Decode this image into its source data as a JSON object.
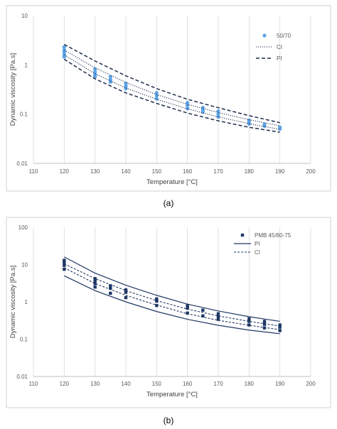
{
  "chart_data": [
    {
      "type": "scatter",
      "panel_label": "(a)",
      "xlabel": "Temperature [°C]",
      "ylabel": "Dynamic viscosity [Pa.s]",
      "xlim": [
        110,
        200
      ],
      "ylim": [
        0.01,
        10
      ],
      "y_scale": "log",
      "grid": "vertical",
      "legend_position": "right",
      "x_ticks": [
        110,
        120,
        130,
        140,
        150,
        160,
        170,
        180,
        190,
        200
      ],
      "y_ticks": [
        {
          "value": 0.01,
          "label": "0.01"
        },
        {
          "value": 0.1,
          "label": "0.1"
        },
        {
          "value": 1,
          "label": "1"
        },
        {
          "value": 10,
          "label": "10"
        }
      ],
      "series": [
        {
          "name": "50/70",
          "kind": "points",
          "marker": "circle",
          "color": "#5ba3e6",
          "points": [
            [
              120,
              2.3
            ],
            [
              120,
              2.0
            ],
            [
              120,
              1.8
            ],
            [
              120,
              1.6
            ],
            [
              120,
              1.45
            ],
            [
              130,
              0.82
            ],
            [
              130,
              0.72
            ],
            [
              130,
              0.64
            ],
            [
              130,
              0.58
            ],
            [
              135,
              0.57
            ],
            [
              135,
              0.5
            ],
            [
              135,
              0.45
            ],
            [
              140,
              0.42
            ],
            [
              140,
              0.37
            ],
            [
              140,
              0.33
            ],
            [
              150,
              0.27
            ],
            [
              150,
              0.235
            ],
            [
              150,
              0.205
            ],
            [
              160,
              0.17
            ],
            [
              160,
              0.15
            ],
            [
              160,
              0.13
            ],
            [
              165,
              0.135
            ],
            [
              165,
              0.12
            ],
            [
              165,
              0.11
            ],
            [
              170,
              0.115
            ],
            [
              170,
              0.1
            ],
            [
              170,
              0.088
            ],
            [
              180,
              0.075
            ],
            [
              180,
              0.068
            ],
            [
              180,
              0.063
            ],
            [
              185,
              0.062
            ],
            [
              185,
              0.057
            ],
            [
              190,
              0.054
            ],
            [
              190,
              0.05
            ]
          ]
        },
        {
          "name": "CI",
          "kind": "line",
          "dash": "1.2,1.8",
          "stroke_width": 1.1,
          "color": "#1f2d4d",
          "curves": [
            [
              [
                120,
                2.0
              ],
              [
                130,
                0.87
              ],
              [
                140,
                0.44
              ],
              [
                150,
                0.25
              ],
              [
                160,
                0.158
              ],
              [
                170,
                0.108
              ],
              [
                180,
                0.077
              ],
              [
                190,
                0.058
              ]
            ],
            [
              [
                120,
                1.6
              ],
              [
                130,
                0.66
              ],
              [
                140,
                0.34
              ],
              [
                150,
                0.2
              ],
              [
                160,
                0.128
              ],
              [
                170,
                0.088
              ],
              [
                180,
                0.064
              ],
              [
                190,
                0.049
              ]
            ]
          ]
        },
        {
          "name": "PI",
          "kind": "line",
          "dash": "5,3",
          "stroke_width": 1.5,
          "color": "#1f2d4d",
          "curves": [
            [
              [
                120,
                2.6
              ],
              [
                130,
                1.2
              ],
              [
                140,
                0.6
              ],
              [
                150,
                0.33
              ],
              [
                160,
                0.2
              ],
              [
                170,
                0.135
              ],
              [
                180,
                0.093
              ],
              [
                190,
                0.067
              ]
            ],
            [
              [
                120,
                1.3
              ],
              [
                130,
                0.52
              ],
              [
                140,
                0.27
              ],
              [
                150,
                0.165
              ],
              [
                160,
                0.105
              ],
              [
                170,
                0.073
              ],
              [
                180,
                0.054
              ],
              [
                190,
                0.043
              ]
            ]
          ]
        }
      ]
    },
    {
      "type": "scatter",
      "panel_label": "(b)",
      "xlabel": "Temperature [°C]",
      "ylabel": "Dynamic viscosity [Pa.s]",
      "xlim": [
        110,
        200
      ],
      "ylim": [
        0.01,
        100
      ],
      "y_scale": "log",
      "grid": "vertical",
      "legend_position": "top-right",
      "x_ticks": [
        110,
        120,
        130,
        140,
        150,
        160,
        170,
        180,
        190,
        200
      ],
      "y_ticks": [
        {
          "value": 0.01,
          "label": "0.01"
        },
        {
          "value": 0.1,
          "label": "0.1"
        },
        {
          "value": 1,
          "label": "1"
        },
        {
          "value": 10,
          "label": "10"
        },
        {
          "value": 100,
          "label": "100"
        }
      ],
      "series": [
        {
          "name": "PMB 45/80-75",
          "kind": "points",
          "marker": "square",
          "color": "#1f3864",
          "points": [
            [
              120,
              13
            ],
            [
              120,
              11.5
            ],
            [
              120,
              9.5
            ],
            [
              120,
              7.5
            ],
            [
              130,
              4.2
            ],
            [
              130,
              3.6
            ],
            [
              130,
              3.1
            ],
            [
              130,
              2.5
            ],
            [
              135,
              2.7
            ],
            [
              135,
              2.3
            ],
            [
              135,
              1.7
            ],
            [
              140,
              2.1
            ],
            [
              140,
              1.8
            ],
            [
              140,
              1.3
            ],
            [
              150,
              1.2
            ],
            [
              150,
              1.05
            ],
            [
              150,
              0.8
            ],
            [
              160,
              0.8
            ],
            [
              160,
              0.68
            ],
            [
              160,
              0.5
            ],
            [
              165,
              0.6
            ],
            [
              165,
              0.42
            ],
            [
              170,
              0.48
            ],
            [
              170,
              0.4
            ],
            [
              170,
              0.34
            ],
            [
              180,
              0.35
            ],
            [
              180,
              0.3
            ],
            [
              180,
              0.24
            ],
            [
              185,
              0.3
            ],
            [
              185,
              0.25
            ],
            [
              185,
              0.2
            ],
            [
              190,
              0.24
            ],
            [
              190,
              0.21
            ],
            [
              190,
              0.17
            ]
          ]
        },
        {
          "name": "PI",
          "kind": "line",
          "dash": "",
          "stroke_width": 1.2,
          "color": "#1f3864",
          "curves": [
            [
              [
                120,
                16
              ],
              [
                130,
                5.9
              ],
              [
                140,
                2.8
              ],
              [
                150,
                1.5
              ],
              [
                160,
                0.87
              ],
              [
                170,
                0.57
              ],
              [
                180,
                0.4
              ],
              [
                190,
                0.3
              ]
            ],
            [
              [
                120,
                5
              ],
              [
                130,
                2.0
              ],
              [
                140,
                1.0
              ],
              [
                150,
                0.55
              ],
              [
                160,
                0.34
              ],
              [
                170,
                0.235
              ],
              [
                180,
                0.175
              ],
              [
                190,
                0.14
              ]
            ]
          ]
        },
        {
          "name": "CI",
          "kind": "line",
          "dash": "3,2",
          "stroke_width": 1.1,
          "color": "#1f3864",
          "curves": [
            [
              [
                120,
                10.5
              ],
              [
                130,
                4.2
              ],
              [
                140,
                2.0
              ],
              [
                150,
                1.08
              ],
              [
                160,
                0.64
              ],
              [
                170,
                0.42
              ],
              [
                180,
                0.3
              ],
              [
                190,
                0.225
              ]
            ],
            [
              [
                120,
                8.2
              ],
              [
                130,
                3.1
              ],
              [
                140,
                1.5
              ],
              [
                150,
                0.82
              ],
              [
                160,
                0.48
              ],
              [
                170,
                0.32
              ],
              [
                180,
                0.235
              ],
              [
                190,
                0.18
              ]
            ]
          ]
        }
      ]
    }
  ]
}
